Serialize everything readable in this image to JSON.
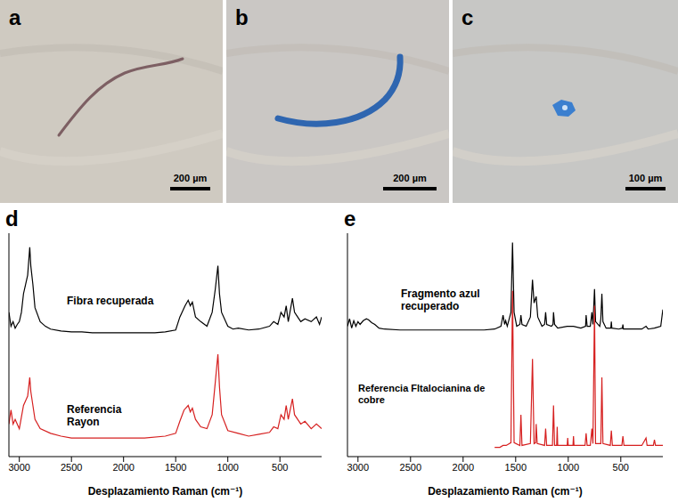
{
  "panels": [
    {
      "letter": "a",
      "scale_bar": "200 µm"
    },
    {
      "letter": "b",
      "scale_bar": "200 µm"
    },
    {
      "letter": "c",
      "scale_bar": "100 µm"
    }
  ],
  "chart_data": [
    {
      "letter": "d",
      "type": "line",
      "x_label": "Desplazamiento Raman (cm⁻¹)",
      "xlim": [
        3100,
        100
      ],
      "xticks": [
        3000,
        2500,
        2000,
        1500,
        1000,
        500
      ],
      "ylim": [
        0,
        2.4
      ],
      "tick_labels": "x",
      "series": [
        {
          "name": "Fibra recuperada",
          "color": "#000000",
          "x": [
            3100,
            3080,
            3060,
            3040,
            3020,
            3000,
            2980,
            2960,
            2940,
            2920,
            2900,
            2890,
            2870,
            2850,
            2800,
            2750,
            2700,
            2600,
            2500,
            2400,
            2300,
            2200,
            2100,
            2000,
            1900,
            1800,
            1700,
            1600,
            1500,
            1460,
            1410,
            1380,
            1360,
            1340,
            1310,
            1260,
            1200,
            1150,
            1120,
            1095,
            1080,
            1060,
            1000,
            950,
            900,
            800,
            700,
            600,
            560,
            520,
            490,
            460,
            440,
            420,
            380,
            360,
            330,
            300,
            260,
            200,
            150,
            120,
            100
          ],
          "values": [
            1.55,
            1.4,
            1.45,
            1.38,
            1.42,
            1.45,
            1.55,
            1.75,
            1.85,
            1.95,
            2.25,
            2.05,
            1.85,
            1.6,
            1.45,
            1.4,
            1.37,
            1.35,
            1.34,
            1.34,
            1.33,
            1.33,
            1.33,
            1.33,
            1.33,
            1.33,
            1.33,
            1.34,
            1.36,
            1.5,
            1.62,
            1.68,
            1.62,
            1.66,
            1.5,
            1.45,
            1.4,
            1.55,
            1.8,
            2.05,
            1.75,
            1.55,
            1.4,
            1.37,
            1.38,
            1.36,
            1.37,
            1.4,
            1.45,
            1.42,
            1.55,
            1.5,
            1.62,
            1.45,
            1.7,
            1.55,
            1.5,
            1.45,
            1.48,
            1.45,
            1.5,
            1.42,
            1.5
          ]
        },
        {
          "name": "Referencia Rayon",
          "color": "#d62020",
          "x": [
            3100,
            3080,
            3060,
            3040,
            3000,
            2960,
            2940,
            2920,
            2900,
            2890,
            2870,
            2850,
            2800,
            2700,
            2600,
            2500,
            2400,
            2200,
            2000,
            1800,
            1600,
            1500,
            1460,
            1420,
            1380,
            1360,
            1340,
            1310,
            1260,
            1200,
            1150,
            1120,
            1095,
            1080,
            1060,
            1000,
            900,
            800,
            700,
            600,
            560,
            520,
            490,
            460,
            440,
            420,
            380,
            360,
            330,
            300,
            260,
            200,
            150,
            100
          ],
          "values": [
            0.35,
            0.5,
            0.35,
            0.4,
            0.3,
            0.55,
            0.6,
            0.65,
            0.85,
            0.7,
            0.55,
            0.4,
            0.3,
            0.25,
            0.22,
            0.2,
            0.2,
            0.2,
            0.2,
            0.2,
            0.22,
            0.25,
            0.38,
            0.5,
            0.55,
            0.48,
            0.52,
            0.4,
            0.32,
            0.3,
            0.45,
            0.8,
            1.1,
            0.75,
            0.45,
            0.28,
            0.25,
            0.22,
            0.24,
            0.26,
            0.32,
            0.3,
            0.45,
            0.4,
            0.55,
            0.4,
            0.62,
            0.45,
            0.4,
            0.35,
            0.38,
            0.3,
            0.35,
            0.3
          ]
        }
      ]
    },
    {
      "letter": "e",
      "type": "line",
      "x_label": "Desplazamiento Raman (cm⁻¹)",
      "xlim": [
        3100,
        100
      ],
      "xticks": [
        3000,
        2500,
        2000,
        1500,
        1000,
        500
      ],
      "ylim": [
        0,
        2.4
      ],
      "tick_labels": "x",
      "series": [
        {
          "name": "Fragmento azul recuperado",
          "color": "#000000",
          "x": [
            3100,
            3080,
            3060,
            3040,
            3020,
            3000,
            2980,
            2950,
            2920,
            2900,
            2870,
            2840,
            2800,
            2750,
            2600,
            2400,
            2200,
            2000,
            1800,
            1700,
            1640,
            1620,
            1605,
            1595,
            1580,
            1545,
            1530,
            1515,
            1490,
            1460,
            1450,
            1440,
            1400,
            1360,
            1340,
            1325,
            1305,
            1290,
            1250,
            1225,
            1215,
            1205,
            1160,
            1145,
            1140,
            1130,
            1100,
            1010,
            950,
            880,
            835,
            830,
            820,
            790,
            775,
            765,
            750,
            740,
            700,
            690,
            680,
            670,
            640,
            595,
            590,
            585,
            520,
            485,
            480,
            475,
            400,
            300,
            260,
            240,
            180,
            120,
            100
          ],
          "values": [
            1.4,
            1.48,
            1.38,
            1.46,
            1.4,
            1.45,
            1.42,
            1.46,
            1.48,
            1.47,
            1.44,
            1.42,
            1.38,
            1.37,
            1.36,
            1.36,
            1.36,
            1.36,
            1.36,
            1.37,
            1.4,
            1.52,
            1.42,
            1.46,
            1.4,
            1.55,
            2.3,
            1.55,
            1.4,
            1.42,
            1.52,
            1.42,
            1.4,
            1.5,
            1.9,
            1.65,
            1.72,
            1.5,
            1.4,
            1.42,
            1.55,
            1.42,
            1.4,
            1.42,
            1.55,
            1.42,
            1.38,
            1.4,
            1.4,
            1.38,
            1.4,
            1.52,
            1.4,
            1.4,
            1.55,
            1.42,
            1.8,
            1.45,
            1.4,
            1.48,
            1.75,
            1.45,
            1.38,
            1.38,
            1.45,
            1.38,
            1.37,
            1.38,
            1.42,
            1.37,
            1.37,
            1.37,
            1.4,
            1.37,
            1.38,
            1.4,
            1.58
          ]
        },
        {
          "name": "Referencia Fltalocianina de cobre",
          "color": "#d62020",
          "x": [
            1700,
            1650,
            1620,
            1590,
            1545,
            1530,
            1515,
            1460,
            1450,
            1440,
            1360,
            1340,
            1325,
            1310,
            1305,
            1295,
            1225,
            1215,
            1205,
            1150,
            1140,
            1130,
            1110,
            1105,
            1100,
            1010,
            1005,
            1000,
            955,
            950,
            945,
            840,
            830,
            820,
            790,
            775,
            765,
            750,
            740,
            690,
            680,
            670,
            600,
            590,
            580,
            490,
            480,
            470,
            300,
            260,
            250,
            190,
            180,
            170,
            100
          ],
          "values": [
            0.1,
            0.1,
            0.12,
            0.12,
            0.15,
            1.78,
            0.15,
            0.12,
            0.45,
            0.12,
            0.14,
            1.05,
            0.14,
            0.15,
            0.35,
            0.14,
            0.12,
            0.3,
            0.12,
            0.12,
            0.55,
            0.12,
            0.12,
            0.32,
            0.12,
            0.12,
            0.2,
            0.12,
            0.12,
            0.22,
            0.12,
            0.12,
            0.25,
            0.12,
            0.12,
            0.3,
            0.14,
            1.62,
            0.14,
            0.14,
            0.85,
            0.14,
            0.12,
            0.28,
            0.12,
            0.12,
            0.22,
            0.12,
            0.12,
            0.2,
            0.12,
            0.12,
            0.18,
            0.12,
            0.12
          ]
        }
      ]
    }
  ]
}
